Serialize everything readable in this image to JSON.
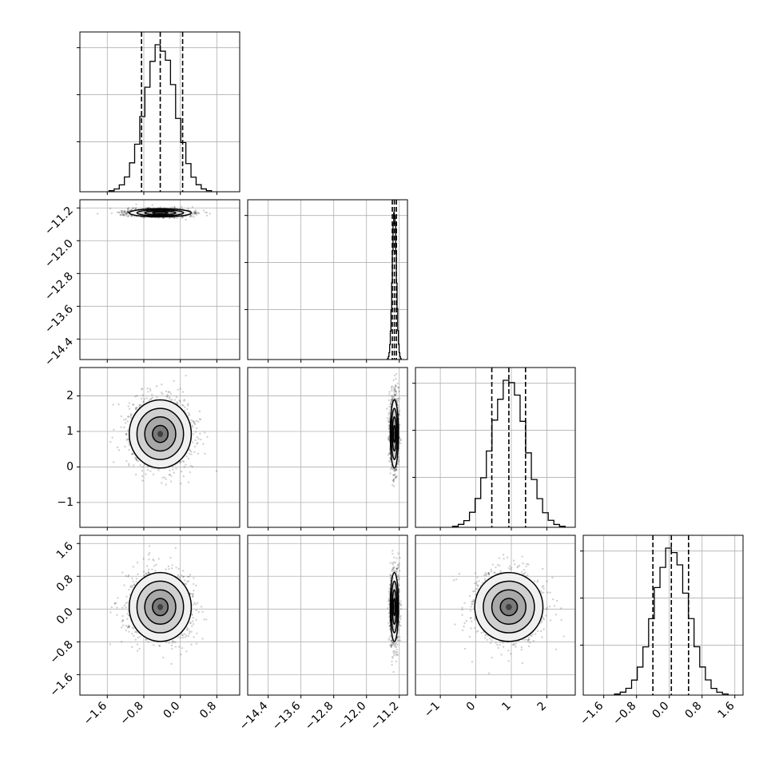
{
  "chart_data": {
    "type": "corner",
    "grid": true,
    "variables": [
      {
        "index": 0,
        "range": [
          -2.2,
          1.3
        ],
        "ticks": [
          -1.6,
          -0.8,
          0.0,
          0.8
        ],
        "tick_labels": [
          "−1.6",
          "−0.8",
          "0.0",
          "0.8"
        ],
        "mean": -0.44,
        "sd": 0.34,
        "quantiles": [
          -0.85,
          -0.44,
          0.05
        ]
      },
      {
        "index": 1,
        "range": [
          -14.9,
          -11.0
        ],
        "ticks": [
          -14.4,
          -13.6,
          -12.8,
          -12.0,
          -11.2
        ],
        "tick_labels": [
          "−14.4",
          "−13.6",
          "−12.8",
          "−12.0",
          "−11.2"
        ],
        "mean": -11.32,
        "sd": 0.05,
        "quantiles": [
          -11.37,
          -11.32,
          -11.27
        ]
      },
      {
        "index": 2,
        "range": [
          -1.7,
          2.8
        ],
        "ticks": [
          -1,
          0,
          1,
          2
        ],
        "tick_labels": [
          "−1",
          "0",
          "1",
          "2"
        ],
        "mean": 0.93,
        "sd": 0.48,
        "quantiles": [
          0.45,
          0.93,
          1.4
        ]
      },
      {
        "index": 3,
        "range": [
          -2.1,
          1.8
        ],
        "ticks": [
          -1.6,
          -0.8,
          0.0,
          0.8,
          1.6
        ],
        "tick_labels": [
          "−1.6",
          "−0.8",
          "0.0",
          "0.8",
          "1.6"
        ],
        "mean": 0.05,
        "sd": 0.42,
        "quantiles": [
          -0.4,
          0.05,
          0.47
        ]
      }
    ],
    "density_levels_sigma": [
      0.5,
      1.0,
      1.5,
      2.0
    ],
    "scatter_points_per_panel": 1500
  }
}
